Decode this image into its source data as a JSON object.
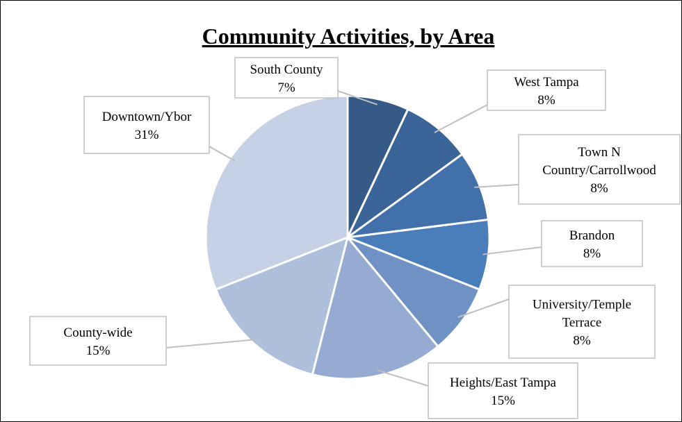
{
  "chart_data": {
    "type": "pie",
    "title": "Community Activities, by Area",
    "start_angle_deg": 0,
    "direction": "clockwise",
    "legend": "none",
    "slices": [
      {
        "label": [
          "South County"
        ],
        "percent_label": "7%",
        "value": 7,
        "color": "#355A88"
      },
      {
        "label": [
          "West Tampa"
        ],
        "percent_label": "8%",
        "value": 8,
        "color": "#3B6499"
      },
      {
        "label": [
          "Town N",
          "Country/Carrollwood"
        ],
        "percent_label": "8%",
        "value": 8,
        "color": "#4270AA"
      },
      {
        "label": [
          "Brandon"
        ],
        "percent_label": "8%",
        "value": 8,
        "color": "#4A7EBB"
      },
      {
        "label": [
          "University/Temple",
          "Terrace"
        ],
        "percent_label": "8%",
        "value": 8,
        "color": "#6F91C4"
      },
      {
        "label": [
          "Heights/East Tampa"
        ],
        "percent_label": "15%",
        "value": 15,
        "color": "#95ABD2"
      },
      {
        "label": [
          "County-wide"
        ],
        "percent_label": "15%",
        "value": 15,
        "color": "#AEBFDC"
      },
      {
        "label": [
          "Downtown/Ybor"
        ],
        "percent_label": "31%",
        "value": 31,
        "color": "#C6D1E5"
      }
    ]
  }
}
